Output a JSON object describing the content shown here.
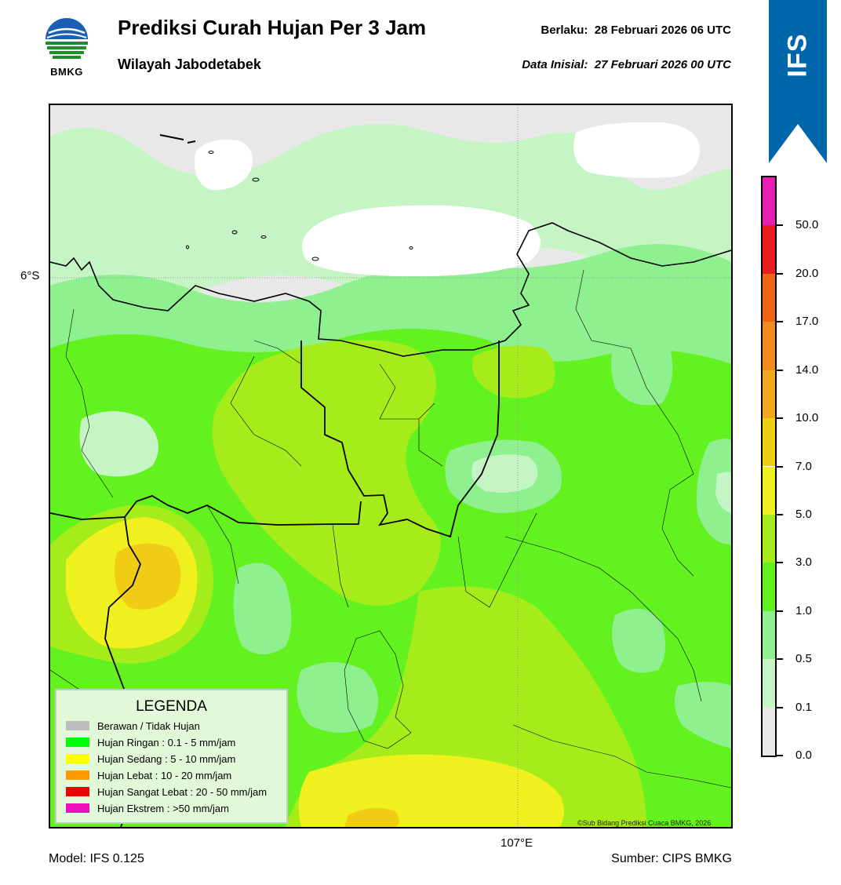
{
  "header": {
    "title": "Prediksi Curah Hujan Per 3 Jam",
    "subtitle": "Wilayah Jabodetabek",
    "valid_label": "Berlaku:",
    "valid_value": "28 Februari 2026 06 UTC",
    "init_label": "Data Inisial:",
    "init_value": "27 Februari 2026 00 UTC"
  },
  "logo": {
    "icon": "bmkg-logo-icon",
    "text": "BMKG"
  },
  "badge": {
    "text": "IFS",
    "color": "#0066aa"
  },
  "map": {
    "lat_label": "6°S",
    "lon_label": "107°E",
    "copyright": "©Sub Bidang Prediksi Cuaca BMKG, 2026"
  },
  "legend": {
    "title": "LEGENDA",
    "items": [
      {
        "label": "Berawan / Tidak Hujan",
        "color": "#bdbdbd"
      },
      {
        "label": "Hujan Ringan : 0.1 - 5 mm/jam",
        "color": "#00ff00"
      },
      {
        "label": "Hujan Sedang : 5 - 10 mm/jam",
        "color": "#ffff00"
      },
      {
        "label": "Hujan Lebat : 10 - 20 mm/jam",
        "color": "#ff9900"
      },
      {
        "label": "Hujan Sangat Lebat : 20 - 50 mm/jam",
        "color": "#ee0000"
      },
      {
        "label": "Hujan Ekstrem : >50 mm/jam",
        "color": "#ee11bb"
      }
    ]
  },
  "colorbar": {
    "levels": [
      "0.0",
      "0.1",
      "0.5",
      "1.0",
      "3.0",
      "5.0",
      "7.0",
      "10.0",
      "14.0",
      "17.0",
      "20.0",
      "50.0"
    ],
    "colors": [
      "#e8e8e8",
      "#c5f5c5",
      "#8ef08e",
      "#63f21f",
      "#a6ec1a",
      "#f0f01e",
      "#f0cc14",
      "#f0a81e",
      "#f08c1e",
      "#ee6414",
      "#e61e1e",
      "#e61eb4"
    ]
  },
  "footer": {
    "model": "Model: IFS 0.125",
    "source": "Sumber: CIPS BMKG"
  }
}
